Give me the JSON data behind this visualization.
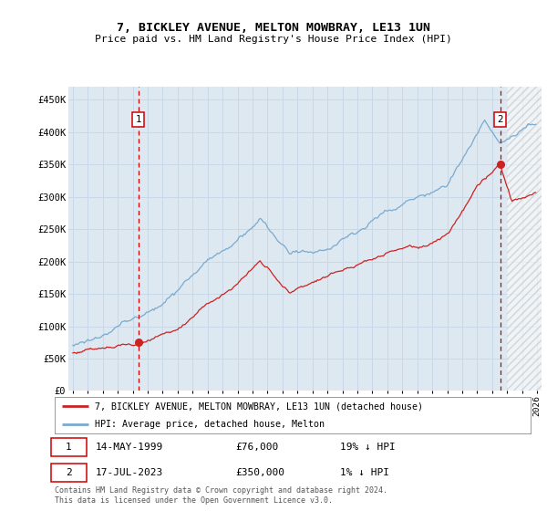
{
  "title": "7, BICKLEY AVENUE, MELTON MOWBRAY, LE13 1UN",
  "subtitle": "Price paid vs. HM Land Registry's House Price Index (HPI)",
  "ylim": [
    0,
    470000
  ],
  "yticks": [
    0,
    50000,
    100000,
    150000,
    200000,
    250000,
    300000,
    350000,
    400000,
    450000
  ],
  "ytick_labels": [
    "£0",
    "£50K",
    "£100K",
    "£150K",
    "£200K",
    "£250K",
    "£300K",
    "£350K",
    "£400K",
    "£450K"
  ],
  "hpi_color": "#7aaad0",
  "price_color": "#cc2222",
  "vline_color": "#cc0000",
  "sale1_year": 1999.37,
  "sale1_price": 76000,
  "sale1_date": "14-MAY-1999",
  "sale1_label": "19% ↓ HPI",
  "sale2_year": 2023.54,
  "sale2_price": 350000,
  "sale2_date": "17-JUL-2023",
  "sale2_label": "1% ↓ HPI",
  "legend_line1": "7, BICKLEY AVENUE, MELTON MOWBRAY, LE13 1UN (detached house)",
  "legend_line2": "HPI: Average price, detached house, Melton",
  "footer": "Contains HM Land Registry data © Crown copyright and database right 2024.\nThis data is licensed under the Open Government Licence v3.0.",
  "grid_color": "#c8d8e8",
  "bg_color": "#dde8f0",
  "hatch_start_year": 2024.0,
  "xlim_left": 1994.7,
  "xlim_right": 2026.3
}
